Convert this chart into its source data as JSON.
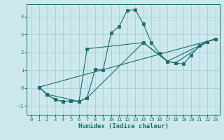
{
  "xlabel": "Humidex (Indice chaleur)",
  "xlim": [
    -0.5,
    23.5
  ],
  "ylim": [
    -1.5,
    4.7
  ],
  "yticks": [
    -1,
    0,
    1,
    2,
    3,
    4
  ],
  "xticks": [
    0,
    1,
    2,
    3,
    4,
    5,
    6,
    7,
    8,
    9,
    10,
    11,
    12,
    13,
    14,
    15,
    16,
    17,
    18,
    19,
    20,
    21,
    22,
    23
  ],
  "bg_color": "#cce8ee",
  "line_color": "#1a6e65",
  "grid_color": "#a8cdd5",
  "series": [
    {
      "x": [
        1,
        2,
        3,
        4,
        5,
        6,
        7,
        8,
        9,
        10,
        11,
        12,
        13,
        14,
        15,
        16,
        17,
        18,
        19,
        20,
        21,
        22,
        23
      ],
      "y": [
        0.05,
        -0.35,
        -0.65,
        -0.75,
        -0.72,
        -0.75,
        -0.55,
        1.05,
        1.0,
        3.1,
        3.45,
        4.35,
        4.4,
        3.6,
        2.55,
        1.95,
        1.5,
        1.4,
        1.35,
        1.85,
        2.4,
        2.6,
        2.75
      ]
    },
    {
      "x": [
        1,
        2,
        6,
        7,
        14,
        17,
        18,
        22,
        23
      ],
      "y": [
        0.05,
        -0.35,
        -0.75,
        2.2,
        2.55,
        1.5,
        1.4,
        2.6,
        2.75
      ]
    },
    {
      "x": [
        1,
        2,
        3,
        4,
        5,
        6,
        7,
        14,
        17,
        22,
        23
      ],
      "y": [
        0.05,
        -0.35,
        -0.65,
        -0.75,
        -0.72,
        -0.75,
        -0.55,
        2.55,
        1.5,
        2.6,
        2.75
      ]
    },
    {
      "x": [
        1,
        23
      ],
      "y": [
        0.05,
        2.75
      ]
    }
  ]
}
